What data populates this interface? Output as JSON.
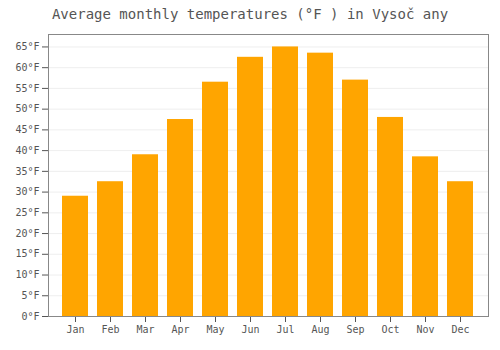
{
  "chart_data": {
    "type": "bar",
    "title": "Average monthly temperatures (°F ) in Vysoč any",
    "categories": [
      "Jan",
      "Feb",
      "Mar",
      "Apr",
      "May",
      "Jun",
      "Jul",
      "Aug",
      "Sep",
      "Oct",
      "Nov",
      "Dec"
    ],
    "values": [
      29,
      32.5,
      39,
      47.5,
      56.5,
      62.5,
      65,
      63.5,
      57,
      48,
      38.5,
      32.5
    ],
    "color": "#FFA500",
    "ylim": [
      0,
      68
    ],
    "yticks": [
      {
        "value": 0,
        "label": "0°F"
      },
      {
        "value": 5,
        "label": "5°F"
      },
      {
        "value": 10,
        "label": "10°F"
      },
      {
        "value": 15,
        "label": "15°F"
      },
      {
        "value": 20,
        "label": "20°F"
      },
      {
        "value": 25,
        "label": "25°F"
      },
      {
        "value": 30,
        "label": "30°F"
      },
      {
        "value": 35,
        "label": "35°F"
      },
      {
        "value": 40,
        "label": "40°F"
      },
      {
        "value": 45,
        "label": "45°F"
      },
      {
        "value": 50,
        "label": "50°F"
      },
      {
        "value": 55,
        "label": "55°F"
      },
      {
        "value": 60,
        "label": "60°F"
      },
      {
        "value": 65,
        "label": "65°F"
      }
    ],
    "grid": true
  }
}
